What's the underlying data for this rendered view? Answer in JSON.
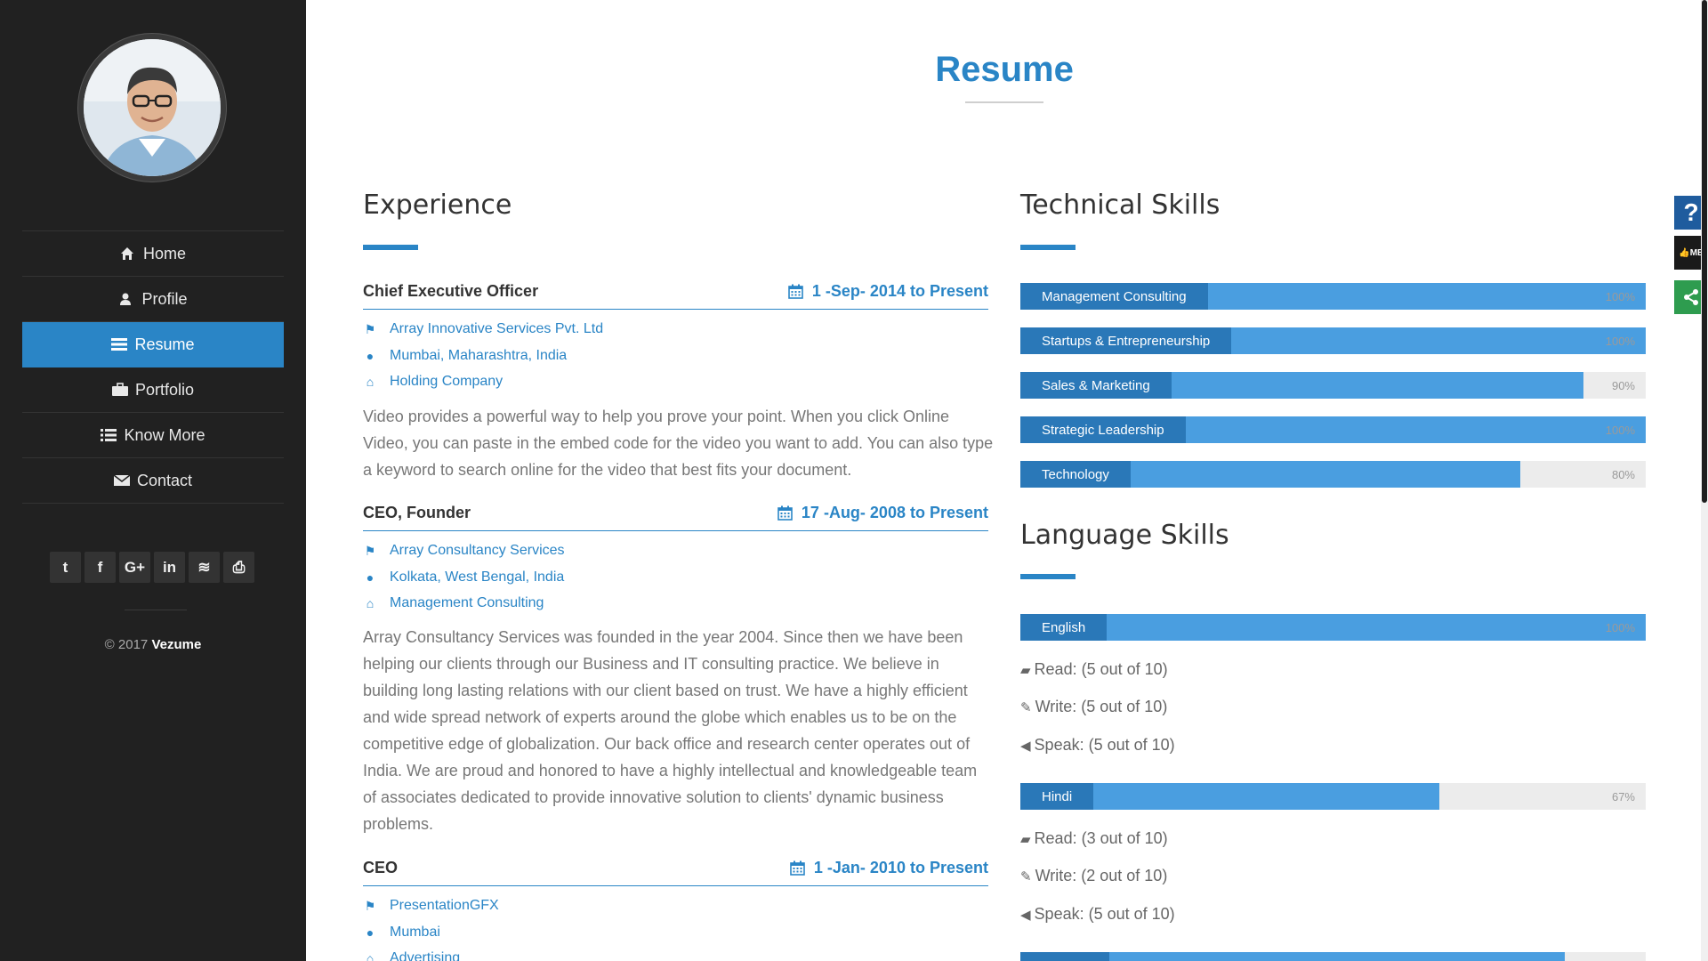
{
  "sidebar": {
    "nav": [
      {
        "label": "Home",
        "icon": "home-icon"
      },
      {
        "label": "Profile",
        "icon": "user-icon"
      },
      {
        "label": "Resume",
        "icon": "resume-icon"
      },
      {
        "label": "Portfolio",
        "icon": "briefcase-icon"
      },
      {
        "label": "Know More",
        "icon": "list-icon"
      },
      {
        "label": "Contact",
        "icon": "envelope-icon"
      }
    ],
    "active": "Resume",
    "social": [
      {
        "icon": "twitter-icon",
        "glyph": "t"
      },
      {
        "icon": "facebook-icon",
        "glyph": "f"
      },
      {
        "icon": "google-plus-icon",
        "glyph": "G+"
      },
      {
        "icon": "linkedin-icon",
        "glyph": "in"
      },
      {
        "icon": "rss-icon",
        "glyph": "≋"
      },
      {
        "icon": "print-icon",
        "glyph": "⎙"
      }
    ],
    "copyright_prefix": "© 2017",
    "copyright_brand": "Vezume"
  },
  "page": {
    "title": "Resume"
  },
  "experience": {
    "heading": "Experience",
    "jobs": [
      {
        "title": "Chief Executive Officer",
        "date": "1 -Sep- 2014 to Present",
        "company": "Array Innovative Services Pvt. Ltd",
        "location": "Mumbai, Maharashtra, India",
        "type": "Holding Company",
        "description": "Video provides a powerful way to help you prove your point. When you click Online Video, you can paste in the embed code for the video you want to add. You can also type a keyword to search online for the video that best fits your document."
      },
      {
        "title": "CEO, Founder",
        "date": "17 -Aug- 2008 to Present",
        "company": "Array Consultancy Services",
        "location": "Kolkata, West Bengal, India",
        "type": "Management Consulting",
        "description": "Array Consultancy Services was founded in the year 2004. Since then we have been helping our clients through our Business and IT consulting practice. We believe in building long lasting relations with our client based on trust. We have a highly efficient and wide spread network of experts around the globe which enables us to be on the competitive edge of globalization. Our back office and research center operates out of India. We are proud and honored to have a highly intellectual and knowledgeable team of associates dedicated to provide innovative solution to clients' dynamic business problems."
      },
      {
        "title": "CEO",
        "date": "1 -Jan- 2010 to Present",
        "company": "PresentationGFX",
        "location": "Mumbai",
        "type": "Advertising"
      }
    ]
  },
  "technical": {
    "heading": "Technical Skills",
    "skills": [
      {
        "name": "Management Consulting",
        "percent": 100,
        "percent_label": "100%"
      },
      {
        "name": "Startups & Entrepreneurship",
        "percent": 100,
        "percent_label": "100%"
      },
      {
        "name": "Sales & Marketing",
        "percent": 90,
        "percent_label": "90%"
      },
      {
        "name": "Strategic Leadership",
        "percent": 100,
        "percent_label": "100%"
      },
      {
        "name": "Technology",
        "percent": 80,
        "percent_label": "80%"
      }
    ]
  },
  "language": {
    "heading": "Language Skills",
    "languages": [
      {
        "name": "English",
        "percent": 100,
        "percent_label": "100%",
        "read": "Read: (5 out of 10)",
        "write": "Write: (5 out of 10)",
        "speak": "Speak: (5 out of 10)"
      },
      {
        "name": "Hindi",
        "percent": 67,
        "percent_label": "67%",
        "read": "Read: (3 out of 10)",
        "write": "Write: (2 out of 10)",
        "speak": "Speak: (5 out of 10)"
      },
      {
        "name": "",
        "percent": 87,
        "percent_label": ""
      }
    ]
  },
  "widgets": {
    "help_glyph": "?",
    "like_label": "ME",
    "share_glyph": "<"
  },
  "colors": {
    "accent": "#2a85c6",
    "sidebar_bg": "#212121",
    "bar_label": "#2a78b8",
    "bar_fill": "#4a9ee0",
    "share_green": "#2e9c4f"
  }
}
